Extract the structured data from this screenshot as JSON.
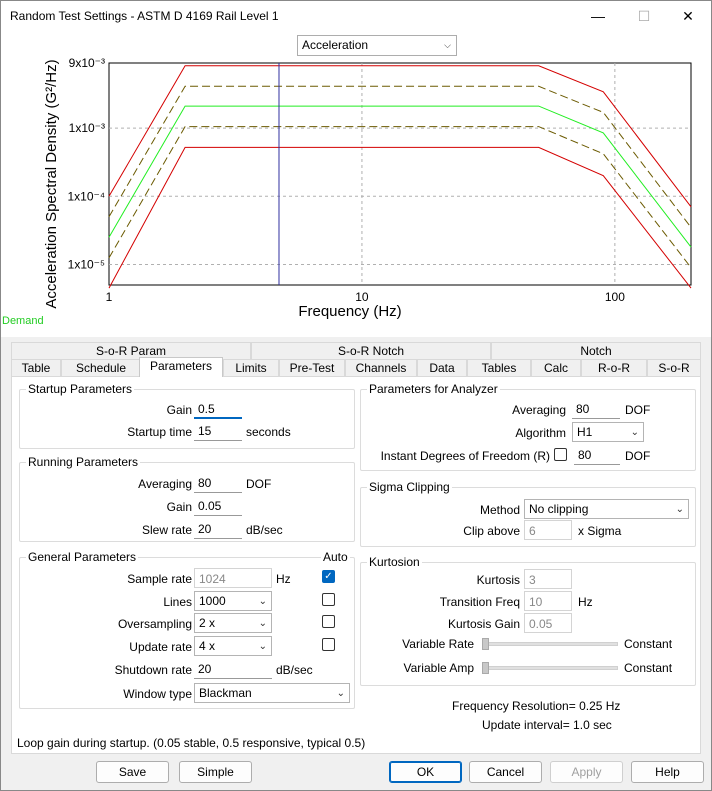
{
  "window": {
    "title": "Random Test Settings - ASTM D 4169 Rail Level 1",
    "minimize_glyph": "—",
    "maximize_glyph": "☐",
    "close_glyph": "✕"
  },
  "plot": {
    "measure_combo": "Acceleration",
    "legend_label": "Demand",
    "chart_data": {
      "type": "line",
      "title": "",
      "xlabel": "Frequency (Hz)",
      "ylabel": "Acceleration Spectral Density (G²/Hz)",
      "xscale": "log",
      "yscale": "log",
      "xlim": [
        1,
        200
      ],
      "ylim": [
        5e-06,
        0.009
      ],
      "x_ticks": [
        "1",
        "10",
        "100"
      ],
      "y_ticks": [
        "9x10⁻³",
        "1x10⁻³",
        "1x10⁻⁴",
        "1x10⁻⁵"
      ],
      "grid": true,
      "colors": {
        "demand": "#22ee22",
        "warning": "#6b5a00",
        "abort": "#d40000",
        "cursor": "#3030a0"
      },
      "series": [
        {
          "style": "solid",
          "color": "#d40000",
          "x": [
            1,
            2,
            50,
            90,
            200
          ],
          "y": [
            0.0001,
            0.0082,
            0.0082,
            0.0034,
            7e-05
          ]
        },
        {
          "style": "dashed",
          "color": "#6b5a00",
          "x": [
            1,
            2,
            50,
            90,
            200
          ],
          "y": [
            5e-05,
            0.0041,
            0.0041,
            0.0017,
            3.5e-05
          ]
        },
        {
          "style": "solid",
          "color": "#22ee22",
          "x": [
            1,
            2,
            50,
            90,
            200
          ],
          "y": [
            2.5e-05,
            0.0021,
            0.0021,
            0.00085,
            1.8e-05
          ]
        },
        {
          "style": "dashed",
          "color": "#6b5a00",
          "x": [
            1,
            2,
            50,
            90,
            200
          ],
          "y": [
            1.25e-05,
            0.00105,
            0.00105,
            0.00042,
            9e-06
          ]
        },
        {
          "style": "solid",
          "color": "#d40000",
          "x": [
            1,
            2,
            50,
            90,
            200
          ],
          "y": [
            4.5e-06,
            0.00052,
            0.00052,
            0.0002,
            4.5e-06
          ]
        }
      ],
      "cursor_x": 4.7
    }
  },
  "tabs_top": [
    "S-o-R Param",
    "S-o-R Notch",
    "Notch"
  ],
  "tabs": [
    "Table",
    "Schedule",
    "Parameters",
    "Limits",
    "Pre-Test",
    "Channels",
    "Data",
    "Tables",
    "Calc",
    "R-o-R",
    "S-o-R"
  ],
  "active_tab": "Parameters",
  "startup": {
    "title": "Startup Parameters",
    "gain_label": "Gain",
    "gain_value": "0.5",
    "time_label": "Startup time",
    "time_value": "15",
    "time_unit": "seconds"
  },
  "running": {
    "title": "Running Parameters",
    "averaging_label": "Averaging",
    "averaging_value": "80",
    "averaging_unit": "DOF",
    "gain_label": "Gain",
    "gain_value": "0.05",
    "slew_label": "Slew rate",
    "slew_value": "20",
    "slew_unit": "dB/sec"
  },
  "general": {
    "title": "General Parameters",
    "auto_label": "Auto",
    "sample_label": "Sample rate",
    "sample_value": "1024",
    "sample_unit": "Hz",
    "lines_label": "Lines",
    "lines_value": "1000",
    "oversampling_label": "Oversampling",
    "oversampling_value": "2 x",
    "update_label": "Update rate",
    "update_value": "4 x",
    "shutdown_label": "Shutdown rate",
    "shutdown_value": "20",
    "shutdown_unit": "dB/sec",
    "window_label": "Window type",
    "window_value": "Blackman"
  },
  "analyzer": {
    "title": "Parameters for Analyzer",
    "averaging_label": "Averaging",
    "averaging_value": "80",
    "averaging_unit": "DOF",
    "algorithm_label": "Algorithm",
    "algorithm_value": "H1",
    "instant_label": "Instant Degrees of Freedom (R)",
    "instant_value": "80",
    "instant_unit": "DOF"
  },
  "sigma": {
    "title": "Sigma Clipping",
    "method_label": "Method",
    "method_value": "No clipping",
    "clip_label": "Clip above",
    "clip_value": "6",
    "clip_unit": "x Sigma"
  },
  "kurtosion": {
    "title": "Kurtosion",
    "kurtosis_label": "Kurtosis",
    "kurtosis_value": "3",
    "transition_label": "Transition Freq",
    "transition_value": "10",
    "transition_unit": "Hz",
    "gain_label": "Kurtosis Gain",
    "gain_value": "0.05",
    "var_rate_label": "Variable Rate",
    "var_rate_value": "Constant",
    "var_amp_label": "Variable Amp",
    "var_amp_value": "Constant"
  },
  "freq_resolution": "Frequency Resolution=  0.25 Hz",
  "update_interval": "Update interval=  1.0 sec",
  "status_text": "Loop gain during startup. (0.05 stable, 0.5 responsive, typical 0.5)",
  "buttons": {
    "save": "Save",
    "simple": "Simple",
    "ok": "OK",
    "cancel": "Cancel",
    "apply": "Apply",
    "help": "Help"
  }
}
